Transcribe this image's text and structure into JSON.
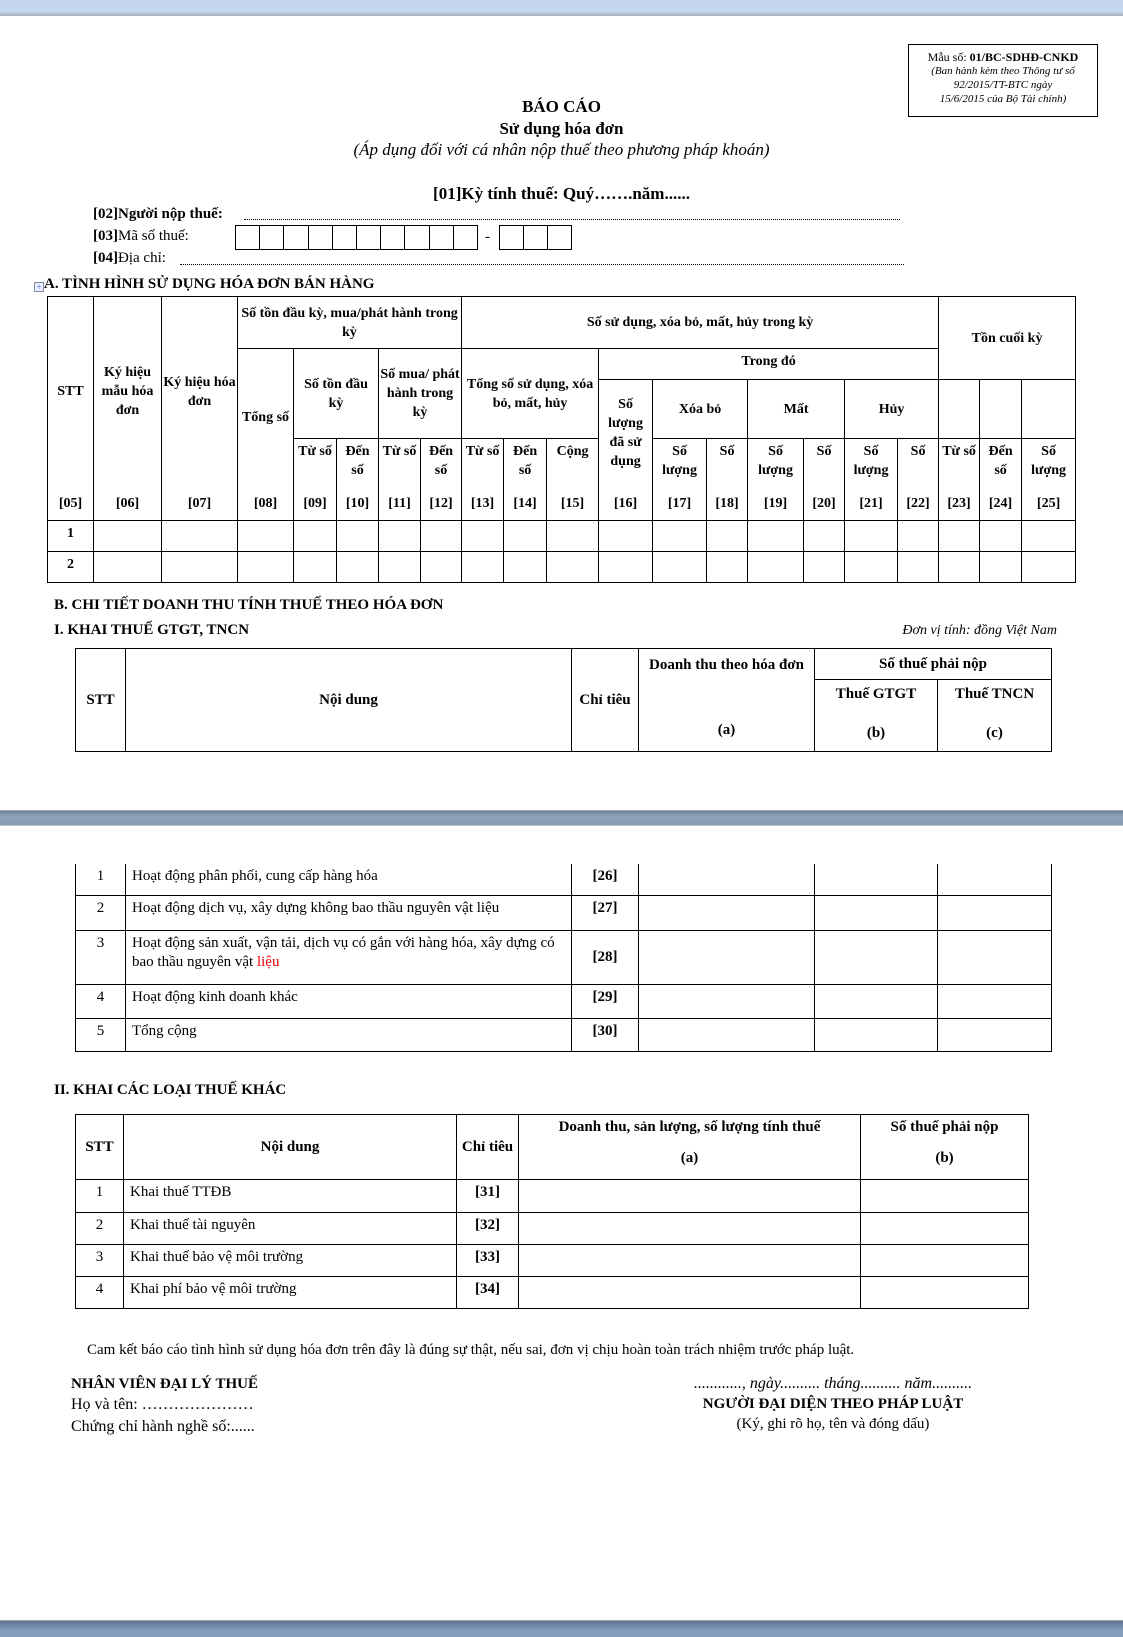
{
  "form_box": {
    "code_label": "Mẫu số: ",
    "code": "01/BC-SDHĐ-CNKD",
    "note1": "(Ban hành kèm theo Thông tư số",
    "note2": "92/2015/TT-BTC ngày",
    "note3": "15/6/2015 của Bộ Tài chính)"
  },
  "header": {
    "title": "BÁO CÁO",
    "subtitle": "Sử dụng hóa đơn",
    "applies": "(Áp dụng đối với cá nhân nộp thuế theo phương pháp khoán)",
    "period": "[01]Kỳ tính thuế: Quý…….năm......"
  },
  "fields": {
    "taxpayer": "[02]Người nộp thuế:",
    "tax_code_prefix": "[03]",
    "tax_code_label": "Mã số thuế:",
    "tax_code_dash": "-",
    "address_prefix": "[04]",
    "address_label": "Địa chỉ:"
  },
  "section_a": {
    "title": "A. TÌNH HÌNH SỬ DỤNG HÓA ĐƠN BÁN HÀNG",
    "headers": {
      "stt": "STT",
      "ky_hieu_mau": "Ký hiệu mẫu hóa đơn",
      "ky_hieu_hd": "Ký hiệu hóa đơn",
      "so_ton_mua": "Số tồn đầu kỳ, mua/phát hành trong kỳ",
      "so_su_dung": "Số sử dụng, xóa bỏ, mất, hủy trong kỳ",
      "ton_cuoi": "Tồn cuối kỳ",
      "tong_so": "Tổng số",
      "so_ton_dau": "Số tồn đầu kỳ",
      "so_mua": "Số mua/ phát hành trong kỳ",
      "tong_su_dung": "Tổng số sử dụng, xóa bỏ, mất, hủy",
      "trong_do": "Trong đó",
      "so_luong_da_sd": "Số lượng đã sử dụng",
      "xoa_bo": "Xóa bỏ",
      "mat": "Mất",
      "huy": "Hủy",
      "tu_so": "Từ số",
      "den_so": "Đến số",
      "cong": "Cộng",
      "so_luong": "Số lượng",
      "so": "Số"
    },
    "codes": [
      "[05]",
      "[06]",
      "[07]",
      "[08]",
      "[09]",
      "[10]",
      "[11]",
      "[12]",
      "[13]",
      "[14]",
      "[15]",
      "[16]",
      "[17]",
      "[18]",
      "[19]",
      "[20]",
      "[21]",
      "[22]",
      "[23]",
      "[24]",
      "[25]"
    ],
    "rows": [
      "1",
      "2"
    ]
  },
  "section_b": {
    "title": "B. CHI TIẾT DOANH THU TÍNH THUẾ THEO HÓA ĐƠN",
    "part1": {
      "title": "I. KHAI THUẾ GTGT, TNCN",
      "unit": "Đơn vị tính: đồng Việt Nam",
      "headers": {
        "stt": "STT",
        "noi_dung": "Nội dung",
        "chi_tieu": "Chỉ tiêu",
        "doanh_thu": "Doanh thu theo hóa đơn",
        "doanh_thu_col": "(a)",
        "so_thue": "Số thuế phải nộp",
        "gtgt": "Thuế GTGT",
        "gtgt_col": "(b)",
        "tncn": "Thuế TNCN",
        "tncn_col": "(c)"
      },
      "rows": [
        {
          "stt": "1",
          "content": "Hoạt động phân phối, cung cấp hàng hóa",
          "code": "[26]"
        },
        {
          "stt": "2",
          "content": "Hoạt động dịch vụ, xây dựng không bao thầu nguyên vật liệu",
          "code": "[27]"
        },
        {
          "stt": "3",
          "content": "Hoạt động sản xuất, vận tải, dịch vụ có gắn với hàng hóa, xây dựng có bao thầu nguyên vật ",
          "content_red": "liệu",
          "code": "[28]"
        },
        {
          "stt": "4",
          "content": "Hoạt động kinh doanh khác",
          "code": "[29]"
        },
        {
          "stt": "5",
          "content": "Tổng cộng",
          "code": "[30]"
        }
      ]
    },
    "part2": {
      "title": "II. KHAI CÁC LOẠI THUẾ KHÁC",
      "headers": {
        "stt": "STT",
        "noi_dung": "Nội dung",
        "chi_tieu": "Chỉ tiêu",
        "doanh_thu": "Doanh thu, sản lượng, số lượng tính thuế",
        "doanh_thu_col": "(a)",
        "so_thue": "Số thuế phải nộp",
        "so_thue_col": "(b)"
      },
      "rows": [
        {
          "stt": "1",
          "content": "Khai thuế TTĐB",
          "code": "[31]"
        },
        {
          "stt": "2",
          "content": "Khai thuế tài nguyên",
          "code": "[32]"
        },
        {
          "stt": "3",
          "content": "Khai thuế bảo vệ môi trường",
          "code": "[33]"
        },
        {
          "stt": "4",
          "content": "Khai phí bảo vệ môi trường",
          "code": "[34]"
        }
      ]
    }
  },
  "footer": {
    "commitment": "Cam kết báo cáo tình hình sử dụng hóa đơn trên đây là đúng sự thật, nếu sai, đơn vị chịu hoàn toàn trách nhiệm trước pháp luật.",
    "agent_title": "NHÂN VIÊN ĐẠI LÝ THUẾ",
    "agent_name": "Họ và tên: …………………",
    "agent_cert": "Chứng chỉ hành nghề số:......",
    "date": "............, ngày.......... tháng.......... năm..........",
    "rep_title": "NGƯỜI ĐẠI DIỆN THEO PHÁP LUẬT",
    "rep_note": "(Ký, ghi rõ họ, tên và đóng dấu)"
  },
  "colors": {
    "top_band": "#c5d7ee",
    "page_separator": "#8a9db4",
    "highlight_text": "#e00000"
  }
}
